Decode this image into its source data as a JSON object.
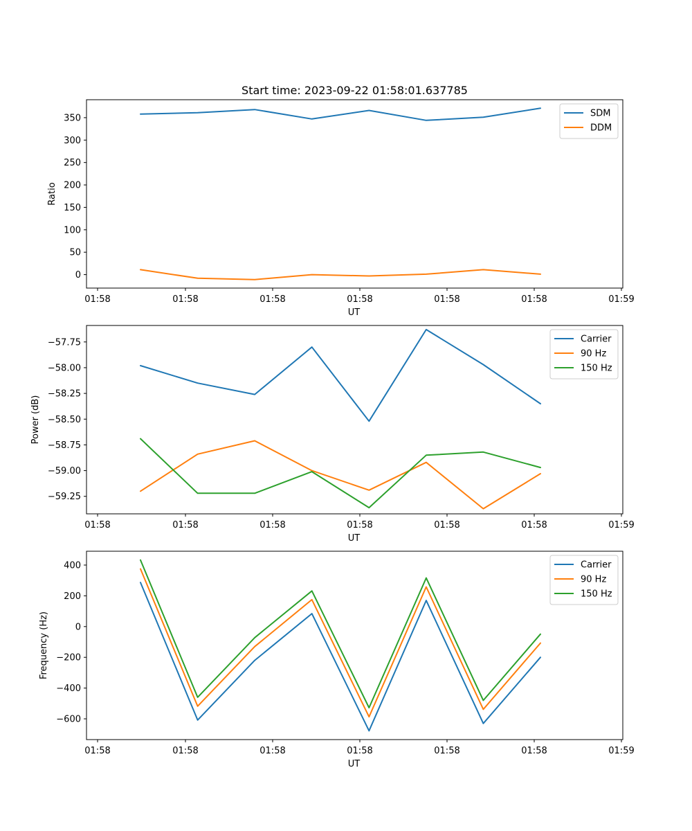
{
  "title": "Start time: 2023-09-22 01:58:01.637785",
  "colors": {
    "c0": "#1f77b4",
    "c1": "#ff7f0e",
    "c2": "#2ca02c"
  },
  "chart_data": [
    {
      "type": "line",
      "xlabel": "UT",
      "ylabel": "Ratio",
      "x_tick_labels": [
        "01:58",
        "01:58",
        "01:58",
        "01:58",
        "01:58",
        "01:58",
        "01:58"
      ],
      "x_tick_last": "01:59",
      "x_point_index": [
        1,
        2,
        3,
        4,
        5,
        6,
        7,
        8
      ],
      "xlim": [
        0,
        9.2
      ],
      "x_tick_positions": [
        0,
        1.5,
        3,
        4.5,
        6,
        7.5,
        9
      ],
      "ylim": [
        -30,
        390
      ],
      "yticks": [
        0,
        50,
        100,
        150,
        200,
        250,
        300,
        350
      ],
      "legend": "top-right",
      "series": [
        {
          "name": "SDM",
          "color": "#1f77b4",
          "values": [
            358,
            361,
            368,
            347,
            366,
            344,
            351,
            371
          ]
        },
        {
          "name": "DDM",
          "color": "#ff7f0e",
          "values": [
            11,
            -8,
            -11,
            0,
            -3,
            1,
            11,
            1
          ]
        }
      ]
    },
    {
      "type": "line",
      "xlabel": "UT",
      "ylabel": "Power (dB)",
      "x_tick_labels": [
        "01:58",
        "01:58",
        "01:58",
        "01:58",
        "01:58",
        "01:58",
        "01:58"
      ],
      "x_tick_last": "01:59",
      "x_point_index": [
        1,
        2,
        3,
        4,
        5,
        6,
        7,
        8
      ],
      "xlim": [
        0,
        9.2
      ],
      "x_tick_positions": [
        0,
        1.5,
        3,
        4.5,
        6,
        7.5,
        9
      ],
      "ylim": [
        -59.42,
        -57.59
      ],
      "yticks": [
        -59.25,
        -59.0,
        -58.75,
        -58.5,
        -58.25,
        -58.0,
        -57.75
      ],
      "ytick_labels": [
        "−59.25",
        "−59.00",
        "−58.75",
        "−58.50",
        "−58.25",
        "−58.00",
        "−57.75"
      ],
      "legend": "top-right",
      "series": [
        {
          "name": "Carrier",
          "color": "#1f77b4",
          "values": [
            -57.98,
            -58.15,
            -58.26,
            -57.8,
            -58.52,
            -57.63,
            -57.97,
            -58.35
          ]
        },
        {
          "name": "90 Hz",
          "color": "#ff7f0e",
          "values": [
            -59.2,
            -58.84,
            -58.71,
            -59.0,
            -59.19,
            -58.92,
            -59.37,
            -59.03
          ]
        },
        {
          "name": "150 Hz",
          "color": "#2ca02c",
          "values": [
            -58.69,
            -59.22,
            -59.22,
            -59.01,
            -59.36,
            -58.85,
            -58.82,
            -58.97
          ]
        }
      ]
    },
    {
      "type": "line",
      "xlabel": "UT",
      "ylabel": "Frequency (Hz)",
      "x_tick_labels": [
        "01:58",
        "01:58",
        "01:58",
        "01:58",
        "01:58",
        "01:58",
        "01:58"
      ],
      "x_tick_last": "01:59",
      "x_point_index": [
        1,
        2,
        3,
        4,
        5,
        6,
        7,
        8
      ],
      "xlim": [
        0,
        9.2
      ],
      "x_tick_positions": [
        0,
        1.5,
        3,
        4.5,
        6,
        7.5,
        9
      ],
      "ylim": [
        -735,
        490
      ],
      "yticks": [
        -600,
        -400,
        -200,
        0,
        200,
        400
      ],
      "ytick_labels": [
        "−600",
        "−400",
        "−200",
        "0",
        "200",
        "400"
      ],
      "legend": "top-right",
      "series": [
        {
          "name": "Carrier",
          "color": "#1f77b4",
          "values": [
            287,
            -608,
            -220,
            84,
            -678,
            170,
            -630,
            -200
          ]
        },
        {
          "name": "90 Hz",
          "color": "#ff7f0e",
          "values": [
            375,
            -518,
            -130,
            175,
            -587,
            258,
            -538,
            -107
          ]
        },
        {
          "name": "150 Hz",
          "color": "#2ca02c",
          "values": [
            433,
            -460,
            -72,
            232,
            -528,
            316,
            -480,
            -49
          ]
        }
      ]
    }
  ]
}
